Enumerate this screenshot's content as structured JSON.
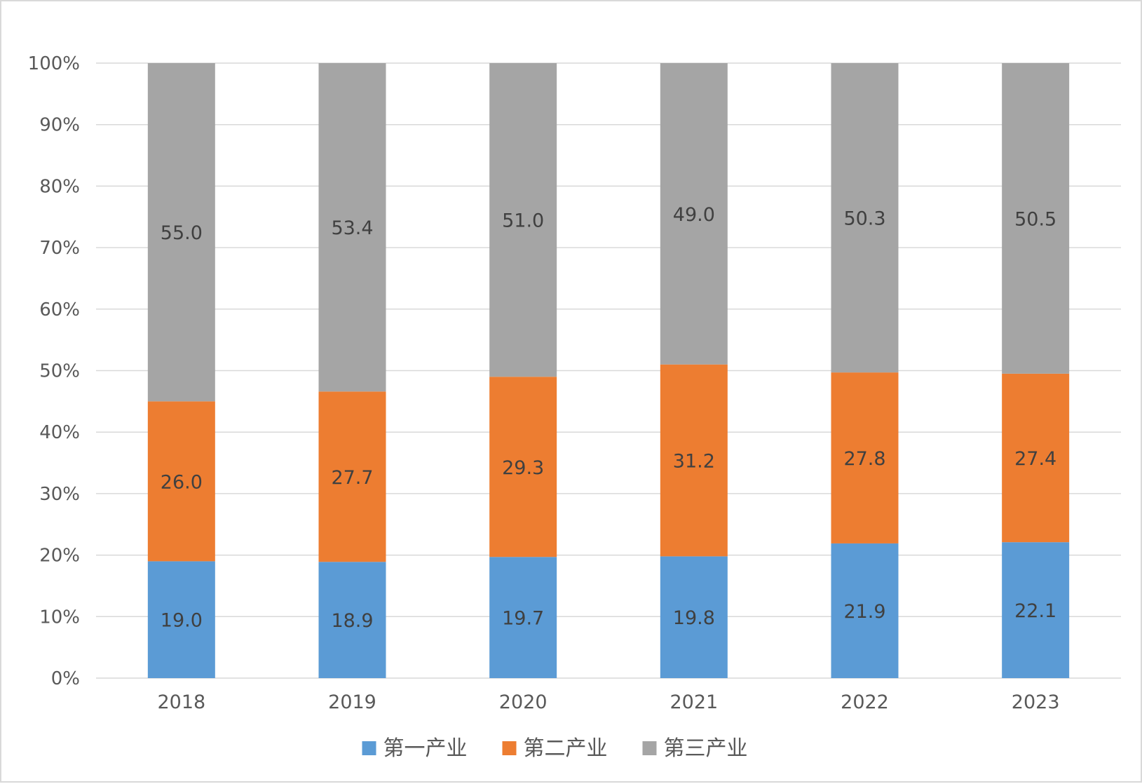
{
  "chart_data": {
    "type": "bar",
    "stacked": true,
    "stack_mode": "percent",
    "categories": [
      "2018",
      "2019",
      "2020",
      "2021",
      "2022",
      "2023"
    ],
    "series": [
      {
        "name": "第一产业",
        "color": "#5b9bd5",
        "values": [
          19.0,
          18.9,
          19.7,
          19.8,
          21.9,
          22.1
        ]
      },
      {
        "name": "第二产业",
        "color": "#ed7d31",
        "values": [
          26.0,
          27.7,
          29.3,
          31.2,
          27.8,
          27.4
        ]
      },
      {
        "name": "第三产业",
        "color": "#a5a5a5",
        "values": [
          55.0,
          53.4,
          51.0,
          49.0,
          50.3,
          50.5
        ]
      }
    ],
    "y_ticks": [
      "0%",
      "10%",
      "20%",
      "30%",
      "40%",
      "50%",
      "60%",
      "70%",
      "80%",
      "90%",
      "100%"
    ],
    "ylim": [
      0,
      100
    ],
    "grid": true,
    "legend_position": "bottom",
    "title": "",
    "xlabel": "",
    "ylabel": ""
  }
}
